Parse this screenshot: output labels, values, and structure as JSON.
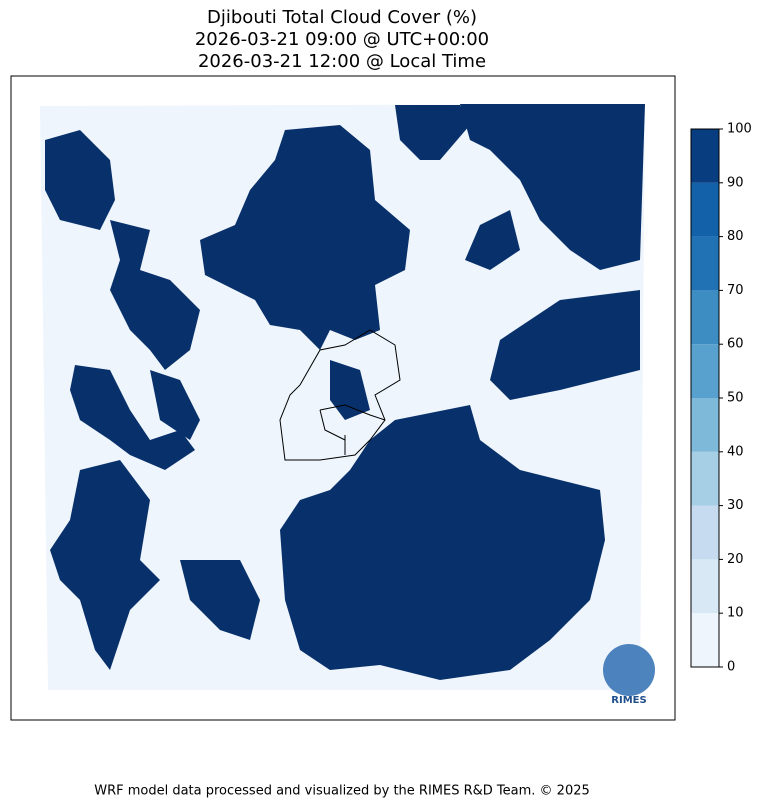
{
  "title": [
    "Djibouti Total Cloud Cover (%)",
    "2026-03-21 09:00 @ UTC+00:00",
    "2026-03-21 12:00 @ Local Time"
  ],
  "colorbar": {
    "lim": [
      0,
      100
    ],
    "ticks": [
      0,
      10,
      20,
      30,
      40,
      50,
      60,
      70,
      80,
      90,
      100
    ],
    "colors": [
      "#eef5fc",
      "#d9e8f5",
      "#c6dbef",
      "#a6cee4",
      "#7fb9da",
      "#58a1cf",
      "#3d8dc3",
      "#2171b5",
      "#1361a9",
      "#083d7f"
    ]
  },
  "logo_text": "RIMES",
  "footer": "WRF model data processed and visualized by the RIMES R&D Team. © 2025"
}
